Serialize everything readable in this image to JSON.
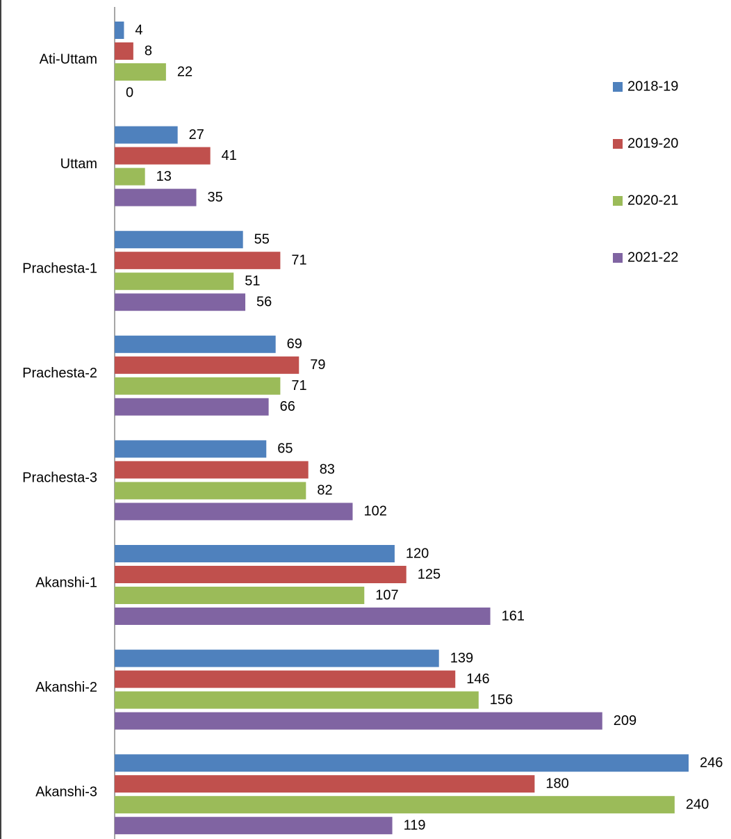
{
  "chart_data": {
    "type": "bar",
    "orientation": "horizontal",
    "categories": [
      "Ati-Uttam",
      "Uttam",
      "Prachesta-1",
      "Prachesta-2",
      "Prachesta-3",
      "Akanshi-1",
      "Akanshi-2",
      "Akanshi-3"
    ],
    "series": [
      {
        "name": "2018-19",
        "color": "#4f81bd",
        "values": [
          4,
          27,
          55,
          69,
          65,
          120,
          139,
          246
        ]
      },
      {
        "name": "2019-20",
        "color": "#c0504d",
        "values": [
          8,
          41,
          71,
          79,
          83,
          125,
          146,
          180
        ]
      },
      {
        "name": "2020-21",
        "color": "#9bbb59",
        "values": [
          22,
          13,
          51,
          71,
          82,
          107,
          156,
          240
        ]
      },
      {
        "name": "2021-22",
        "color": "#8064a2",
        "values": [
          0,
          35,
          56,
          66,
          102,
          161,
          209,
          119
        ]
      }
    ],
    "xlim": [
      0,
      246
    ],
    "legend": "right"
  }
}
